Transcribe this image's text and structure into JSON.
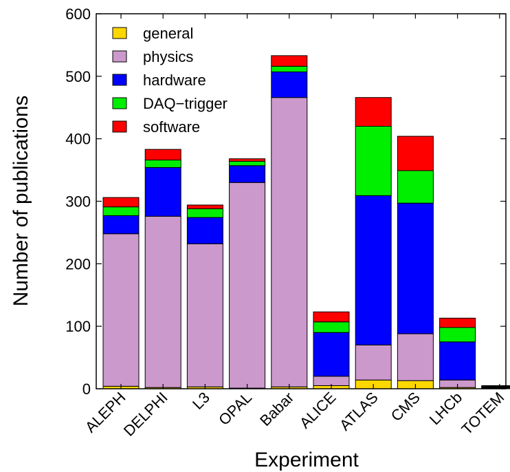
{
  "chart_data": {
    "type": "bar",
    "stacked": true,
    "title": "",
    "xlabel": "Experiment",
    "ylabel": "Number of publications",
    "ylim": [
      0,
      600
    ],
    "yticks": [
      "0",
      "100",
      "200",
      "300",
      "400",
      "500",
      "600"
    ],
    "grid": false,
    "legend_position": "top-left",
    "categories": [
      "ALEPH",
      "DELPHI",
      "L3",
      "OPAL",
      "Babar",
      "ALICE",
      "ATLAS",
      "CMS",
      "LHCb",
      "TOTEM"
    ],
    "series": [
      {
        "name": "general",
        "color": "#FFD700",
        "values": [
          4,
          2,
          3,
          1,
          3,
          5,
          14,
          13,
          2,
          1
        ]
      },
      {
        "name": "physics",
        "color": "#CC99CC",
        "values": [
          244,
          274,
          229,
          329,
          463,
          15,
          56,
          75,
          12,
          1
        ]
      },
      {
        "name": "hardware",
        "color": "#0000FF",
        "values": [
          29,
          78,
          42,
          27,
          41,
          70,
          239,
          209,
          61,
          1
        ]
      },
      {
        "name": "DAQ−trigger",
        "color": "#00EE00",
        "values": [
          14,
          12,
          14,
          7,
          9,
          17,
          111,
          52,
          23,
          1
        ]
      },
      {
        "name": "software",
        "color": "#FF0000",
        "values": [
          15,
          17,
          6,
          4,
          17,
          16,
          46,
          55,
          15,
          1
        ]
      }
    ]
  }
}
